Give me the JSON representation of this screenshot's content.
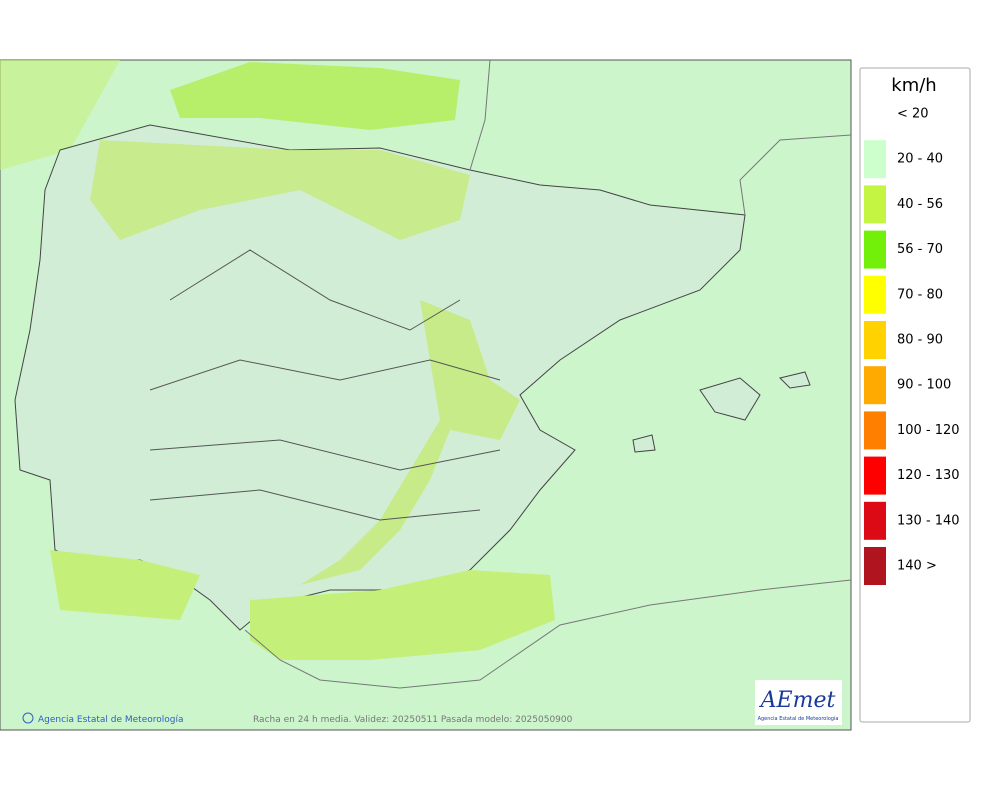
{
  "legend": {
    "title": "km/h",
    "items": [
      {
        "label": "< 20",
        "color": null
      },
      {
        "label": "20 - 40",
        "color": "#ccffcc"
      },
      {
        "label": "40 - 56",
        "color": "#c4f542"
      },
      {
        "label": "56 - 70",
        "color": "#73f00a"
      },
      {
        "label": "70 - 80",
        "color": "#ffff00"
      },
      {
        "label": "80 - 90",
        "color": "#ffd200"
      },
      {
        "label": "90 - 100",
        "color": "#ffaa00"
      },
      {
        "label": "100 - 120",
        "color": "#ff8000"
      },
      {
        "label": "120 - 130",
        "color": "#ff0000"
      },
      {
        "label": "130 - 140",
        "color": "#dc0a14"
      },
      {
        "label": "140 >",
        "color": "#b0141e"
      }
    ]
  },
  "footer": {
    "credit": "Agencia Estatal de Meteorología",
    "caption": "Racha en 24 h media. Validez: 20250511 Pasada modelo: 2025050900"
  },
  "logo": {
    "name": "AEmet",
    "subtitle": "Agencia Estatal de Meteorología"
  }
}
